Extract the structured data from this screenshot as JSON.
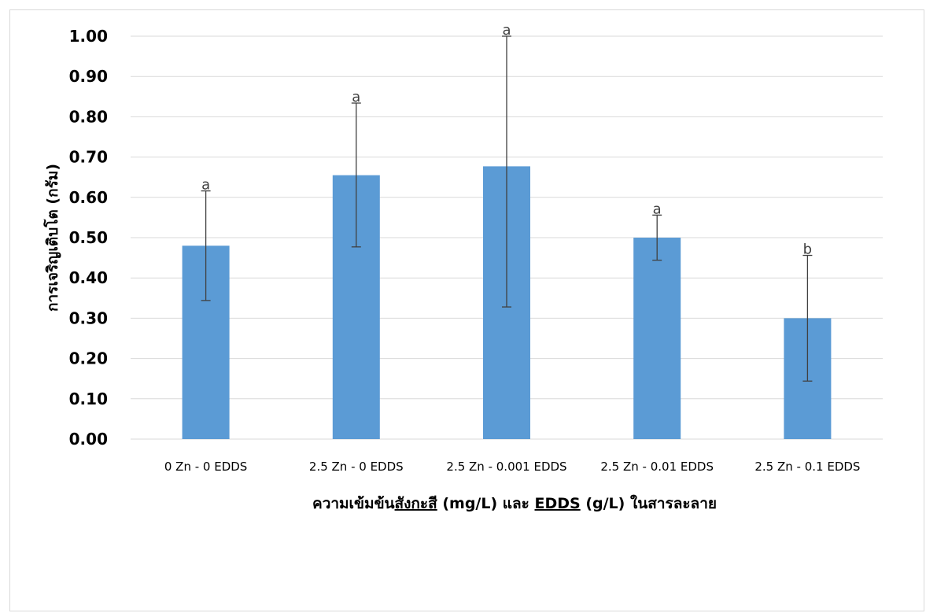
{
  "chart_data": {
    "type": "bar",
    "categories": [
      "0 Zn - 0 EDDS",
      "2.5 Zn - 0 EDDS",
      "2.5 Zn - 0.001 EDDS",
      "2.5 Zn - 0.01 EDDS",
      "2.5 Zn - 0.1 EDDS"
    ],
    "values": [
      0.48,
      0.655,
      0.677,
      0.5,
      0.3
    ],
    "error_upper": [
      0.616,
      0.834,
      1.0,
      0.556,
      0.456
    ],
    "error_lower": [
      0.344,
      0.477,
      0.328,
      0.444,
      0.144
    ],
    "significance_letters": [
      "a",
      "a",
      "a",
      "a",
      "b"
    ],
    "xlabel_parts": [
      {
        "text": "ความเข้มข้น",
        "underline": false
      },
      {
        "text": "สังกะสี",
        "underline": true
      },
      {
        "text": " (mg/L) และ ",
        "underline": false
      },
      {
        "text": "EDDS",
        "underline": true
      },
      {
        "text": " (g/L) ในสารละลาย",
        "underline": false
      }
    ],
    "ylabel": "การเจริญเติบโต (กรัม)",
    "ylim": [
      0,
      1.0
    ],
    "yticks": [
      "0.00",
      "0.10",
      "0.20",
      "0.30",
      "0.40",
      "0.50",
      "0.60",
      "0.70",
      "0.80",
      "0.90",
      "1.00"
    ],
    "grid": true,
    "legend": "none",
    "bar_color": "#5b9bd5",
    "error_color": "#404040"
  }
}
